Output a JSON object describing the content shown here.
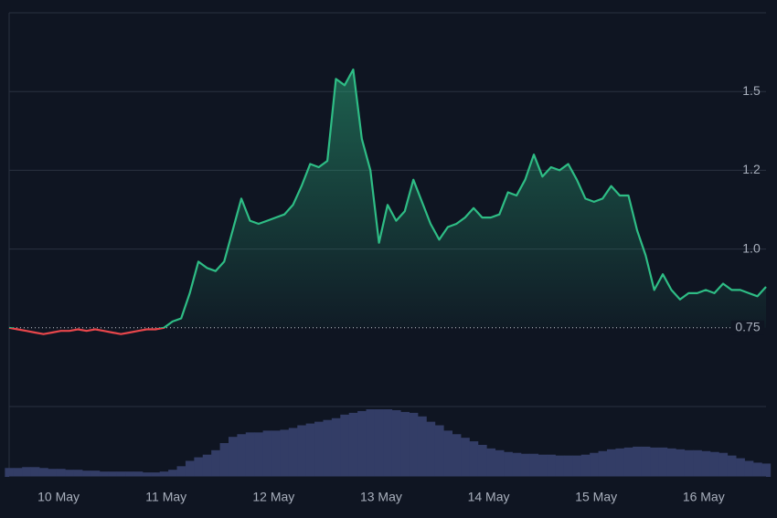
{
  "chart_data": {
    "type": "line",
    "x": [
      -0.46,
      -0.38,
      -0.3,
      -0.22,
      -0.14,
      -0.06,
      0.02,
      0.1,
      0.18,
      0.26,
      0.34,
      0.42,
      0.5,
      0.58,
      0.66,
      0.74,
      0.82,
      0.9,
      0.98,
      1.06,
      1.14,
      1.22,
      1.3,
      1.38,
      1.46,
      1.54,
      1.62,
      1.7,
      1.78,
      1.86,
      1.94,
      2.02,
      2.1,
      2.18,
      2.26,
      2.34,
      2.42,
      2.5,
      2.58,
      2.66,
      2.74,
      2.82,
      2.9,
      2.98,
      3.06,
      3.14,
      3.22,
      3.3,
      3.38,
      3.46,
      3.54,
      3.62,
      3.7,
      3.78,
      3.86,
      3.94,
      4.02,
      4.1,
      4.18,
      4.26,
      4.34,
      4.42,
      4.5,
      4.58,
      4.66,
      4.74,
      4.82,
      4.9,
      4.98,
      5.06,
      5.14,
      5.22,
      5.3,
      5.38,
      5.46,
      5.54,
      5.62,
      5.7,
      5.78,
      5.86,
      5.94,
      6.02,
      6.1,
      6.18,
      6.26,
      6.34,
      6.42,
      6.5,
      6.58
    ],
    "values": [
      0.75,
      0.745,
      0.74,
      0.735,
      0.73,
      0.735,
      0.74,
      0.74,
      0.745,
      0.74,
      0.745,
      0.74,
      0.735,
      0.73,
      0.735,
      0.74,
      0.745,
      0.745,
      0.75,
      0.77,
      0.78,
      0.86,
      0.96,
      0.94,
      0.93,
      0.96,
      1.06,
      1.16,
      1.09,
      1.08,
      1.09,
      1.1,
      1.11,
      1.14,
      1.2,
      1.27,
      1.26,
      1.28,
      1.54,
      1.52,
      1.57,
      1.35,
      1.25,
      1.02,
      1.14,
      1.09,
      1.12,
      1.22,
      1.15,
      1.08,
      1.03,
      1.07,
      1.08,
      1.1,
      1.13,
      1.1,
      1.1,
      1.11,
      1.18,
      1.17,
      1.22,
      1.3,
      1.23,
      1.26,
      1.25,
      1.27,
      1.22,
      1.16,
      1.15,
      1.16,
      1.2,
      1.17,
      1.17,
      1.06,
      0.98,
      0.87,
      0.92,
      0.87,
      0.84,
      0.86,
      0.86,
      0.87,
      0.86,
      0.89,
      0.87,
      0.87,
      0.86,
      0.85,
      0.88
    ],
    "volume": [
      10,
      10,
      11,
      11,
      10,
      9,
      9,
      8,
      8,
      7,
      7,
      6,
      6,
      6,
      6,
      6,
      5,
      5,
      6,
      8,
      12,
      18,
      22,
      25,
      30,
      38,
      45,
      48,
      50,
      50,
      52,
      52,
      53,
      55,
      58,
      60,
      62,
      64,
      66,
      70,
      72,
      74,
      76,
      76,
      76,
      75,
      73,
      72,
      68,
      62,
      58,
      52,
      48,
      44,
      40,
      36,
      32,
      30,
      28,
      27,
      26,
      26,
      25,
      25,
      24,
      24,
      24,
      25,
      27,
      29,
      31,
      32,
      33,
      34,
      34,
      33,
      33,
      32,
      31,
      30,
      30,
      29,
      28,
      27,
      24,
      21,
      18,
      16,
      15
    ],
    "baseline": 0.75,
    "up_color": "#2ebd85",
    "down_color": "#e8464b",
    "volume_color": "#333d66",
    "xlim": [
      -0.46,
      6.58
    ],
    "xticks": [
      {
        "value": 0,
        "label": "10 May"
      },
      {
        "value": 1,
        "label": "11 May"
      },
      {
        "value": 2,
        "label": "12 May"
      },
      {
        "value": 3,
        "label": "13 May"
      },
      {
        "value": 4,
        "label": "14 May"
      },
      {
        "value": 5,
        "label": "15 May"
      },
      {
        "value": 6,
        "label": "16 May"
      }
    ],
    "ylim": [
      0.5,
      1.75
    ],
    "yticks": [
      {
        "value": 1,
        "label": "1.0"
      },
      {
        "value": 1.25,
        "label": "1.2"
      },
      1.5
    ],
    "grid": true
  }
}
